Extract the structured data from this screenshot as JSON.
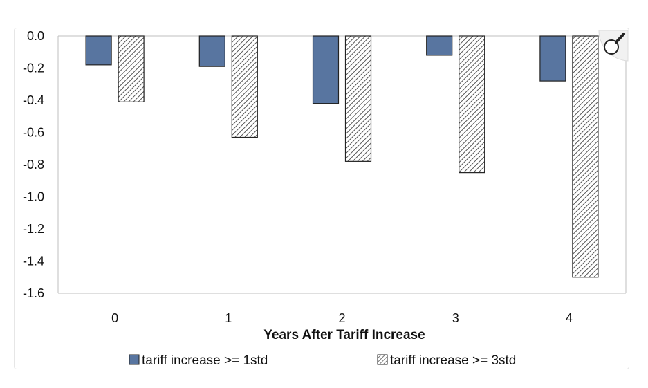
{
  "chart_data": {
    "type": "bar",
    "categories": [
      "0",
      "1",
      "2",
      "3",
      "4"
    ],
    "series": [
      {
        "name": "tariff increase >= 1std",
        "values": [
          -0.18,
          -0.19,
          -0.42,
          -0.12,
          -0.28
        ],
        "color": "#5875a0",
        "pattern": "solid"
      },
      {
        "name": "tariff increase >= 3std",
        "values": [
          -0.41,
          -0.63,
          -0.78,
          -0.85,
          -1.5
        ],
        "color": "#555555",
        "pattern": "hatch"
      }
    ],
    "title": "",
    "xlabel": "Years After Tariff Increase",
    "ylabel": "",
    "ylim": [
      -1.6,
      0.0
    ],
    "yticks": [
      "0.0",
      "-0.2",
      "-0.4",
      "-0.6",
      "-0.8",
      "-1.0",
      "-1.2",
      "-1.4",
      "-1.6"
    ],
    "legend_position": "bottom",
    "grid": false
  },
  "zoom_icon": "magnifier-icon"
}
